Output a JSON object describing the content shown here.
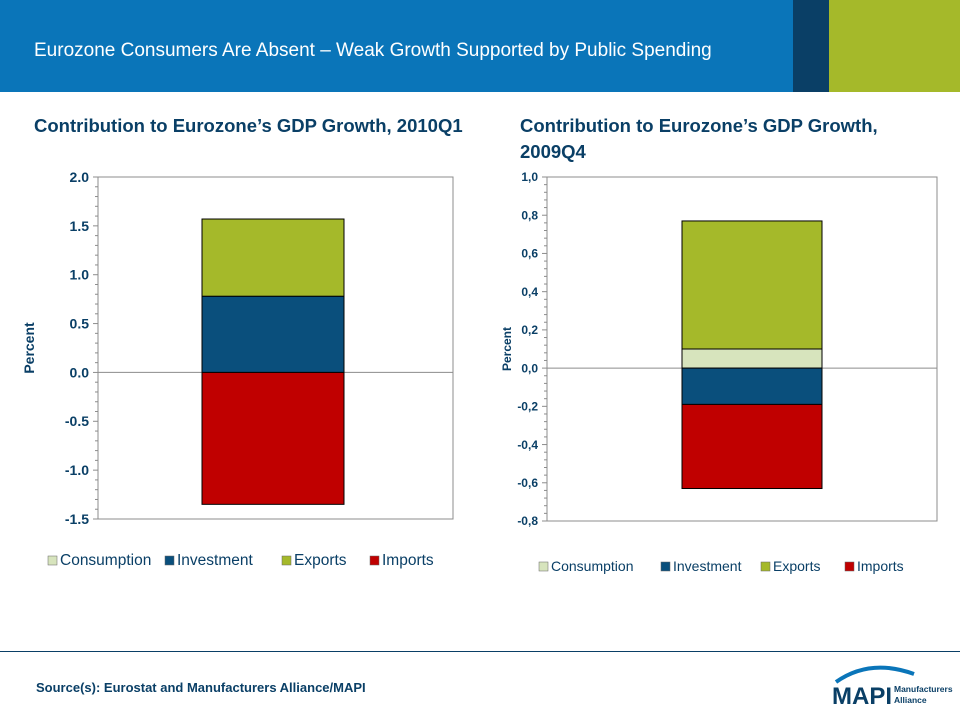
{
  "header": {
    "title": "Eurozone Consumers Are Absent – Weak Growth Supported by Public Spending"
  },
  "colors": {
    "consumption": "#d7e4bd",
    "investment": "#0a4f7c",
    "exports": "#a5b92a",
    "imports": "#c00000",
    "text": "#0a3f66",
    "header": "#0a75b9"
  },
  "chart_data": [
    {
      "type": "bar",
      "stacked": true,
      "title": "Contribution to Eurozone’s GDP Growth, 2010Q1",
      "ylabel": "Percent",
      "ylim": [
        -1.5,
        2.0
      ],
      "yticks": [
        "2.0",
        "1.5",
        "1.0",
        "0.5",
        "0.0",
        "-0.5",
        "-1.0",
        "-1.5"
      ],
      "categories": [
        ""
      ],
      "series": [
        {
          "name": "Consumption",
          "values": [
            0.0
          ]
        },
        {
          "name": "Investment",
          "values": [
            0.78
          ]
        },
        {
          "name": "Exports",
          "values": [
            0.79
          ]
        },
        {
          "name": "Imports",
          "values": [
            -1.35
          ]
        }
      ],
      "legend": "bottom",
      "grid": false
    },
    {
      "type": "bar",
      "stacked": true,
      "title": "Contribution to Eurozone’s GDP Growth, 2009Q4",
      "ylabel": "Percent",
      "ylim": [
        -0.8,
        1.0
      ],
      "yticks": [
        "1,0",
        "0,8",
        "0,6",
        "0,4",
        "0,2",
        "0,0",
        "-0,2",
        "-0,4",
        "-0,6",
        "-0,8"
      ],
      "categories": [
        ""
      ],
      "series": [
        {
          "name": "Consumption",
          "values": [
            0.1
          ]
        },
        {
          "name": "Investment",
          "values": [
            -0.19
          ]
        },
        {
          "name": "Exports",
          "values": [
            0.67
          ]
        },
        {
          "name": "Imports",
          "values": [
            -0.44
          ]
        }
      ],
      "legend": "bottom",
      "grid": false
    }
  ],
  "footer": {
    "source": "Source(s): Eurostat and Manufacturers Alliance/MAPI",
    "logo_text": "MAPI",
    "logo_sub1": "Manufacturers",
    "logo_sub2": "Alliance"
  }
}
